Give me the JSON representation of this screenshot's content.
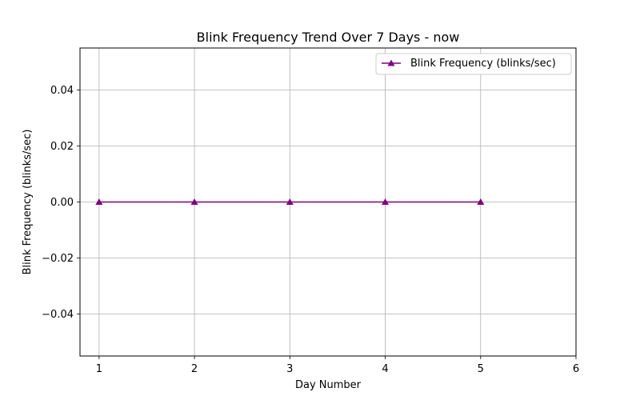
{
  "chart_data": {
    "type": "line",
    "title": "Blink Frequency Trend Over 7 Days - now",
    "xlabel": "Day Number",
    "ylabel": "Blink Frequency (blinks/sec)",
    "xlim": [
      0.8,
      6
    ],
    "ylim": [
      -0.055,
      0.055
    ],
    "xticks": [
      1,
      2,
      3,
      4,
      5,
      6
    ],
    "xtick_labels": [
      "1",
      "2",
      "3",
      "4",
      "5",
      "6"
    ],
    "yticks": [
      0.04,
      0.02,
      0.0,
      -0.02,
      -0.04
    ],
    "ytick_labels": [
      "0.04",
      "0.02",
      "0.00",
      "−0.02",
      "−0.04"
    ],
    "grid": true,
    "legend_position": "top-right",
    "series": [
      {
        "name": "Blink Frequency (blinks/sec)",
        "color": "#800080",
        "marker": "triangle-up",
        "x": [
          1,
          2,
          3,
          4,
          5
        ],
        "y": [
          0,
          0,
          0,
          0,
          0
        ]
      }
    ]
  }
}
